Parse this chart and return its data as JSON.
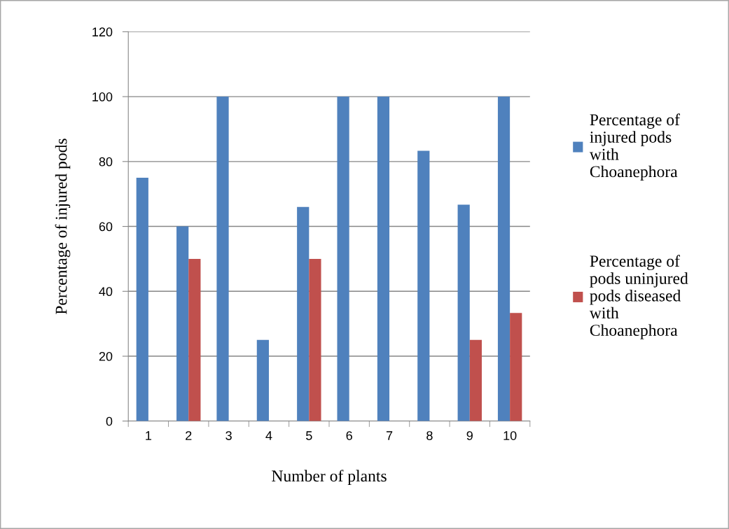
{
  "chart_data": {
    "type": "bar",
    "xlabel": "Number of plants",
    "ylabel": "Percentage of injured pods",
    "categories": [
      "1",
      "2",
      "3",
      "4",
      "5",
      "6",
      "7",
      "8",
      "9",
      "10"
    ],
    "series": [
      {
        "name": "Percentage of\ninjured pods\nwith\nChoanephora",
        "color": "#4f81bd",
        "values": [
          75,
          60,
          100,
          25,
          66,
          100,
          100,
          83.3,
          66.7,
          100
        ]
      },
      {
        "name": "Percentage of\npods uninjured\npods diseased\nwith\nChoanephora",
        "color": "#c0504d",
        "values": [
          0,
          50,
          0,
          0,
          50,
          0,
          0,
          0,
          25,
          33.3
        ]
      }
    ],
    "ylim": [
      0,
      120
    ],
    "yticks": [
      0,
      20,
      40,
      60,
      80,
      100,
      120
    ],
    "grid": "y",
    "legend": "right"
  }
}
